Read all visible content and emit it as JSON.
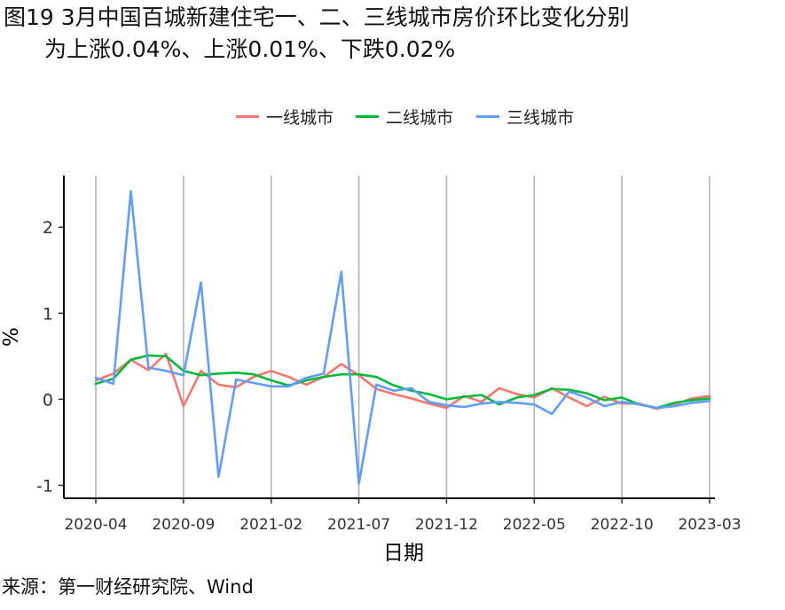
{
  "title": {
    "line1": "图19 3月中国百城新建住宅一、二、三线城市房价环比变化分别",
    "line2": "为上涨0.04%、上涨0.01%、下跌0.02%"
  },
  "source": "来源：第一财经研究院、Wind",
  "chart_data": {
    "type": "line",
    "xlabel": "日期",
    "ylabel": "%",
    "ylim": [
      -1.15,
      2.6
    ],
    "yticks": [
      -1,
      0,
      1,
      2
    ],
    "ytick_labels": [
      "-1",
      "0",
      "1",
      "2"
    ],
    "xtick_labels": [
      "2020-04",
      "2020-09",
      "2021-02",
      "2021-07",
      "2021-12",
      "2022-05",
      "2022-10",
      "2023-03"
    ],
    "xtick_index": [
      0,
      5,
      10,
      15,
      20,
      25,
      30,
      35
    ],
    "grid": "vertical-major",
    "legend_position": "top",
    "x": [
      "2020-04",
      "2020-05",
      "2020-06",
      "2020-07",
      "2020-08",
      "2020-09",
      "2020-10",
      "2020-11",
      "2020-12",
      "2021-01",
      "2021-02",
      "2021-03",
      "2021-04",
      "2021-05",
      "2021-06",
      "2021-07",
      "2021-08",
      "2021-09",
      "2021-10",
      "2021-11",
      "2021-12",
      "2022-01",
      "2022-02",
      "2022-03",
      "2022-04",
      "2022-05",
      "2022-06",
      "2022-07",
      "2022-08",
      "2022-09",
      "2022-10",
      "2022-11",
      "2022-12",
      "2023-01",
      "2023-02",
      "2023-03"
    ],
    "series": [
      {
        "name": "一线城市",
        "color": "#F8766D",
        "values": [
          0.22,
          0.3,
          0.46,
          0.34,
          0.53,
          -0.08,
          0.33,
          0.17,
          0.14,
          0.26,
          0.33,
          0.26,
          0.17,
          0.26,
          0.41,
          0.28,
          0.12,
          0.06,
          0.01,
          -0.05,
          -0.1,
          0.04,
          -0.03,
          0.13,
          0.06,
          0.02,
          0.13,
          0.02,
          -0.08,
          0.03,
          -0.05,
          -0.05,
          -0.11,
          -0.06,
          0.01,
          0.04
        ]
      },
      {
        "name": "二线城市",
        "color": "#00BA38",
        "values": [
          0.18,
          0.24,
          0.46,
          0.51,
          0.5,
          0.33,
          0.28,
          0.3,
          0.31,
          0.29,
          0.22,
          0.16,
          0.22,
          0.26,
          0.29,
          0.29,
          0.26,
          0.16,
          0.1,
          0.06,
          0.0,
          0.03,
          0.05,
          -0.06,
          0.02,
          0.05,
          0.12,
          0.11,
          0.07,
          -0.01,
          0.02,
          -0.06,
          -0.1,
          -0.04,
          -0.01,
          0.01
        ]
      },
      {
        "name": "三线城市",
        "color": "#619CFF",
        "values": [
          0.25,
          0.18,
          2.42,
          0.37,
          0.33,
          0.28,
          1.36,
          -0.9,
          0.23,
          0.19,
          0.15,
          0.15,
          0.25,
          0.3,
          1.48,
          -0.98,
          0.17,
          0.1,
          0.13,
          -0.03,
          -0.07,
          -0.09,
          -0.05,
          -0.03,
          -0.04,
          -0.06,
          -0.17,
          0.09,
          0.02,
          -0.08,
          -0.03,
          -0.06,
          -0.1,
          -0.08,
          -0.04,
          -0.02
        ]
      }
    ]
  }
}
